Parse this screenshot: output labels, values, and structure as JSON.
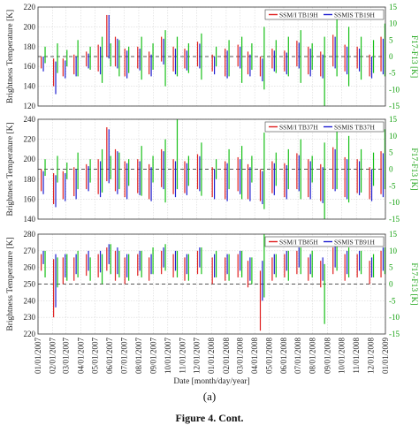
{
  "figure": {
    "subfigure_label": "(a)",
    "caption_fragment": "Figure 4. Cont."
  },
  "colors": {
    "ssmi": "#e02020",
    "ssmis": "#1f1fd0",
    "diff": "#18c018",
    "zero_line": "#555555"
  },
  "chart_data": [
    {
      "type": "line",
      "panel": "top",
      "ylabel": "Brightness Temperature [K]",
      "ylabel_right": "F17-F13 [K]",
      "ylim": [
        120,
        220
      ],
      "yticks": [
        120,
        140,
        160,
        180,
        200,
        220
      ],
      "ylim_right": [
        -15,
        15
      ],
      "yticks_right": [
        -15,
        -10,
        -5,
        0,
        5,
        10,
        15
      ],
      "legend": [
        "SSM/I TB19H",
        "SSMIS TB19H"
      ],
      "legend_position": "top-right",
      "grid": true,
      "x": [
        "2007-01-10",
        "2007-02-05",
        "2007-02-25",
        "2007-03-20",
        "2007-04-15",
        "2007-05-10",
        "2007-05-28",
        "2007-06-15",
        "2007-07-05",
        "2007-08-01",
        "2007-08-25",
        "2007-09-20",
        "2007-10-15",
        "2007-11-08",
        "2007-12-05",
        "2008-01-05",
        "2008-02-01",
        "2008-02-28",
        "2008-03-20",
        "2008-04-15",
        "2008-05-10",
        "2008-06-05",
        "2008-07-01",
        "2008-07-25",
        "2008-08-20",
        "2008-09-15",
        "2008-10-10",
        "2008-11-05",
        "2008-12-01",
        "2008-12-25"
      ],
      "series": [
        {
          "name": "SSM/I TB19H",
          "low": [
            158,
            140,
            150,
            152,
            160,
            155,
            170,
            160,
            150,
            158,
            152,
            165,
            155,
            158,
            160,
            155,
            150,
            160,
            152,
            150,
            158,
            155,
            160,
            152,
            150,
            160,
            155,
            158,
            150,
            155
          ],
          "high": [
            170,
            168,
            168,
            172,
            175,
            182,
            212,
            190,
            178,
            180,
            175,
            190,
            180,
            178,
            185,
            172,
            178,
            182,
            175,
            170,
            178,
            176,
            186,
            180,
            175,
            192,
            182,
            180,
            172,
            190
          ]
        },
        {
          "name": "SSMIS TB19H",
          "low": [
            155,
            132,
            148,
            150,
            158,
            152,
            168,
            158,
            148,
            156,
            150,
            162,
            152,
            156,
            158,
            152,
            148,
            158,
            150,
            145,
            155,
            152,
            158,
            150,
            148,
            158,
            152,
            155,
            148,
            152
          ],
          "high": [
            170,
            165,
            166,
            170,
            173,
            180,
            212,
            188,
            176,
            178,
            172,
            188,
            178,
            176,
            183,
            170,
            176,
            180,
            172,
            168,
            176,
            174,
            184,
            178,
            172,
            190,
            180,
            178,
            170,
            188
          ]
        },
        {
          "name": "F17-F13",
          "low": [
            -2,
            -5,
            -3,
            -6,
            -4,
            -8,
            -3,
            -6,
            -5,
            -7,
            -4,
            -9,
            -6,
            -5,
            -7,
            -3,
            -6,
            -8,
            -4,
            -10,
            -5,
            -6,
            -8,
            -4,
            -15,
            -6,
            -9,
            -7,
            -5,
            -6
          ],
          "high": [
            3,
            4,
            2,
            5,
            3,
            6,
            4,
            5,
            3,
            6,
            4,
            8,
            6,
            4,
            7,
            3,
            5,
            6,
            4,
            9,
            5,
            6,
            8,
            4,
            6,
            12,
            9,
            6,
            5,
            10
          ]
        }
      ]
    },
    {
      "type": "line",
      "panel": "middle",
      "ylabel": "Brightness Temperature [K]",
      "ylabel_right": "F17-F13 [K]",
      "ylim": [
        140,
        240
      ],
      "yticks": [
        140,
        160,
        180,
        200,
        220,
        240
      ],
      "ylim_right": [
        -15,
        15
      ],
      "yticks_right": [
        -15,
        -10,
        -5,
        0,
        5,
        10,
        15
      ],
      "legend": [
        "SSM/I TB37H",
        "SSMIS TB37H"
      ],
      "legend_position": "top-right",
      "grid": true,
      "x": [
        "2007-01-10",
        "2007-02-05",
        "2007-02-25",
        "2007-03-20",
        "2007-04-15",
        "2007-05-10",
        "2007-05-28",
        "2007-06-15",
        "2007-07-05",
        "2007-08-01",
        "2007-08-25",
        "2007-09-20",
        "2007-10-15",
        "2007-11-08",
        "2007-12-05",
        "2008-01-05",
        "2008-02-01",
        "2008-02-28",
        "2008-03-20",
        "2008-04-15",
        "2008-05-10",
        "2008-06-05",
        "2008-07-01",
        "2008-07-25",
        "2008-08-20",
        "2008-09-15",
        "2008-10-10",
        "2008-11-05",
        "2008-12-01",
        "2008-12-25"
      ],
      "series": [
        {
          "name": "SSM/I TB37H",
          "low": [
            168,
            155,
            160,
            163,
            170,
            165,
            178,
            168,
            162,
            166,
            160,
            172,
            165,
            166,
            170,
            162,
            160,
            168,
            160,
            158,
            166,
            162,
            170,
            162,
            158,
            170,
            162,
            166,
            160,
            165
          ],
          "high": [
            190,
            186,
            188,
            192,
            195,
            200,
            232,
            210,
            198,
            200,
            195,
            210,
            200,
            198,
            205,
            192,
            198,
            202,
            195,
            190,
            198,
            196,
            206,
            200,
            195,
            212,
            202,
            200,
            192,
            208
          ]
        },
        {
          "name": "SSMIS TB37H",
          "low": [
            165,
            152,
            158,
            160,
            168,
            162,
            176,
            165,
            160,
            164,
            158,
            170,
            162,
            164,
            168,
            160,
            158,
            165,
            158,
            155,
            164,
            160,
            168,
            160,
            156,
            168,
            160,
            164,
            158,
            162
          ],
          "high": [
            188,
            184,
            186,
            190,
            193,
            198,
            230,
            208,
            196,
            198,
            192,
            208,
            198,
            196,
            203,
            190,
            196,
            200,
            192,
            188,
            196,
            194,
            204,
            198,
            192,
            210,
            200,
            198,
            190,
            206
          ]
        },
        {
          "name": "F17-F13",
          "low": [
            -2,
            -4,
            -3,
            -6,
            -4,
            -7,
            -3,
            -6,
            -5,
            -8,
            -4,
            -10,
            -6,
            -5,
            -8,
            -3,
            -6,
            -9,
            -4,
            -12,
            -5,
            -6,
            -9,
            -4,
            -15,
            -6,
            -10,
            -7,
            -5,
            -6
          ],
          "high": [
            3,
            4,
            2,
            5,
            3,
            6,
            4,
            5,
            3,
            7,
            4,
            9,
            15,
            4,
            8,
            3,
            6,
            7,
            4,
            11,
            5,
            6,
            9,
            4,
            8,
            14,
            10,
            6,
            5,
            12
          ]
        }
      ]
    },
    {
      "type": "line",
      "panel": "bottom",
      "ylabel": "Brightness Temperature [K]",
      "ylabel_right": "F17-F13 [K]",
      "xlabel": "Date [month/day/year]",
      "ylim": [
        220,
        280
      ],
      "yticks": [
        220,
        230,
        240,
        250,
        260,
        270,
        280
      ],
      "ylim_right": [
        -15,
        15
      ],
      "yticks_right": [
        -15,
        -10,
        -5,
        0,
        5,
        10,
        15
      ],
      "legend": [
        "SSM/I TB85H",
        "SSMIS TB91H"
      ],
      "legend_position": "top-right",
      "grid": true,
      "xticks": [
        "01/01/2007",
        "02/01/2007",
        "03/01/2007",
        "04/01/2007",
        "05/01/2007",
        "06/01/2007",
        "07/01/2007",
        "08/01/2007",
        "09/01/2007",
        "10/01/2007",
        "11/01/2007",
        "12/01/2007",
        "01/01/2008",
        "02/01/2008",
        "03/01/2008",
        "04/01/2008",
        "05/01/2008",
        "06/01/2008",
        "07/01/2008",
        "08/01/2008",
        "09/01/2008",
        "10/01/2008",
        "11/01/2008",
        "12/01/2008",
        "01/01/2009"
      ],
      "x": [
        "2007-01-10",
        "2007-02-05",
        "2007-02-25",
        "2007-03-20",
        "2007-04-15",
        "2007-05-10",
        "2007-05-28",
        "2007-06-15",
        "2007-07-05",
        "2007-08-01",
        "2007-08-25",
        "2007-09-20",
        "2007-10-15",
        "2007-11-08",
        "2007-12-05",
        "2008-01-05",
        "2008-02-01",
        "2008-02-28",
        "2008-03-20",
        "2008-04-15",
        "2008-05-10",
        "2008-06-05",
        "2008-07-01",
        "2008-07-25",
        "2008-08-20",
        "2008-09-15",
        "2008-10-10",
        "2008-11-05",
        "2008-12-01",
        "2008-12-25"
      ],
      "series": [
        {
          "name": "SSM/I TB85H",
          "low": [
            258,
            230,
            250,
            252,
            255,
            254,
            258,
            252,
            250,
            255,
            252,
            256,
            254,
            252,
            256,
            250,
            252,
            254,
            248,
            222,
            252,
            254,
            256,
            252,
            248,
            256,
            252,
            254,
            250,
            254
          ],
          "high": [
            268,
            265,
            266,
            266,
            268,
            268,
            272,
            270,
            266,
            268,
            266,
            270,
            268,
            266,
            270,
            266,
            266,
            268,
            264,
            258,
            266,
            268,
            270,
            266,
            264,
            272,
            268,
            268,
            264,
            270
          ]
        },
        {
          "name": "SSMIS TB91H",
          "low": [
            262,
            236,
            254,
            256,
            258,
            257,
            262,
            256,
            254,
            258,
            256,
            260,
            258,
            256,
            260,
            254,
            256,
            258,
            252,
            240,
            256,
            258,
            260,
            256,
            252,
            260,
            256,
            258,
            254,
            258
          ],
          "high": [
            270,
            268,
            268,
            268,
            270,
            270,
            274,
            272,
            268,
            270,
            268,
            272,
            270,
            268,
            272,
            268,
            268,
            270,
            266,
            264,
            268,
            270,
            272,
            268,
            266,
            274,
            270,
            270,
            266,
            272
          ]
        },
        {
          "name": "F17-F13",
          "low": [
            2,
            -1,
            1,
            2,
            1,
            0,
            3,
            2,
            1,
            2,
            3,
            4,
            2,
            1,
            3,
            2,
            1,
            2,
            0,
            -4,
            2,
            1,
            3,
            2,
            -12,
            4,
            2,
            3,
            2,
            3
          ],
          "high": [
            10,
            8,
            9,
            10,
            8,
            9,
            12,
            10,
            9,
            10,
            11,
            12,
            10,
            9,
            11,
            10,
            9,
            10,
            8,
            15,
            9,
            10,
            11,
            10,
            6,
            14,
            11,
            10,
            9,
            11
          ]
        }
      ]
    }
  ]
}
